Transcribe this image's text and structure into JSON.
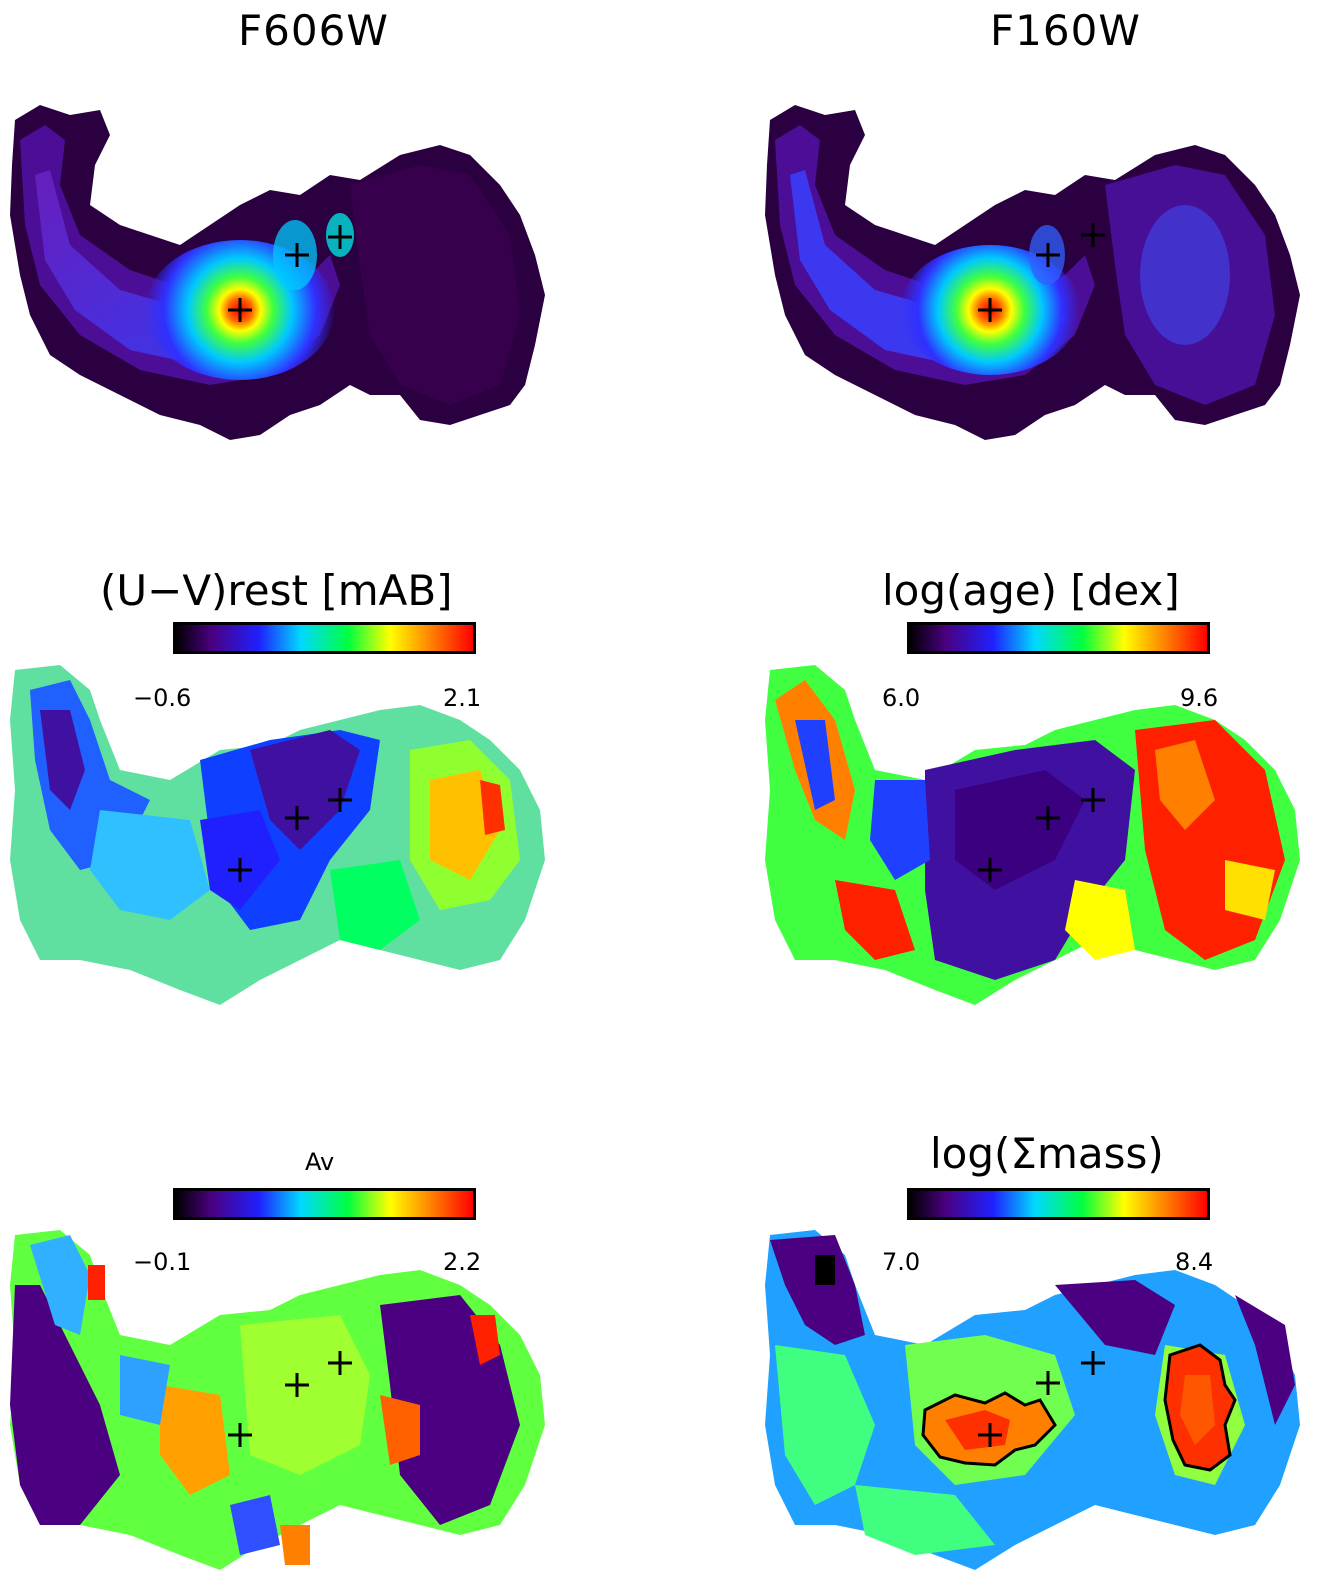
{
  "panels": [
    {
      "id": "f606w",
      "title": "F606W"
    },
    {
      "id": "f160w",
      "title": "F160W"
    },
    {
      "id": "uv",
      "title": "(U−V)rest [mAB]",
      "cbar_min": "−0.6",
      "cbar_max": "2.1"
    },
    {
      "id": "age",
      "title": "log(age) [dex]",
      "cbar_min": "6.0",
      "cbar_max": "9.6"
    },
    {
      "id": "av",
      "title": "Av",
      "cbar_min": "−0.1",
      "cbar_max": "2.2"
    },
    {
      "id": "mass",
      "title": "log(Σmass)",
      "cbar_min": "7.0",
      "cbar_max": "8.4"
    }
  ],
  "colors": {
    "intensity_cmap": [
      "#000000",
      "#3a0050",
      "#5a10b0",
      "#3030ff",
      "#00c8ff",
      "#00ff80",
      "#ffff00",
      "#ff3000"
    ],
    "rainbow_cmap": [
      "#000000",
      "#4a0080",
      "#2020ff",
      "#00d8ff",
      "#00ff40",
      "#ffff00",
      "#ff8000",
      "#ff0000"
    ]
  },
  "markers": "+"
}
